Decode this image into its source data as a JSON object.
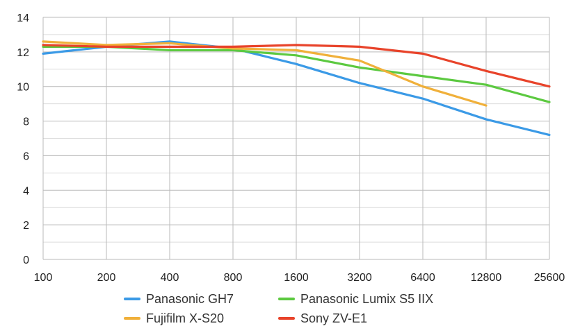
{
  "chart_data": {
    "type": "line",
    "categories": [
      "100",
      "200",
      "400",
      "800",
      "1600",
      "3200",
      "6400",
      "12800",
      "25600"
    ],
    "ylim": [
      0,
      14
    ],
    "yticks": [
      0,
      2,
      4,
      6,
      8,
      10,
      12,
      14
    ],
    "grid": true,
    "legend_position": "bottom",
    "series": [
      {
        "name": "Panasonic GH7",
        "color": "#3b9ae6",
        "values": [
          11.9,
          12.3,
          12.6,
          12.2,
          11.3,
          10.2,
          9.3,
          8.1,
          7.2
        ]
      },
      {
        "name": "Panasonic Lumix S5 IIX",
        "color": "#5cc940",
        "values": [
          12.3,
          12.3,
          12.1,
          12.1,
          11.8,
          11.1,
          10.6,
          10.1,
          9.1
        ]
      },
      {
        "name": "Fujifilm X-S20",
        "color": "#f0b03a",
        "values": [
          12.6,
          12.4,
          12.5,
          12.2,
          12.1,
          11.5,
          10.0,
          8.9,
          null
        ]
      },
      {
        "name": "Sony ZV-E1",
        "color": "#e8432a",
        "values": [
          12.4,
          12.3,
          12.3,
          12.3,
          12.4,
          12.3,
          11.9,
          10.9,
          10.0
        ]
      }
    ]
  },
  "legend": [
    {
      "label": "Panasonic GH7",
      "color": "#3b9ae6"
    },
    {
      "label": "Panasonic Lumix S5 IIX",
      "color": "#5cc940"
    },
    {
      "label": "Fujifilm X-S20",
      "color": "#f0b03a"
    },
    {
      "label": "Sony ZV-E1",
      "color": "#e8432a"
    }
  ]
}
